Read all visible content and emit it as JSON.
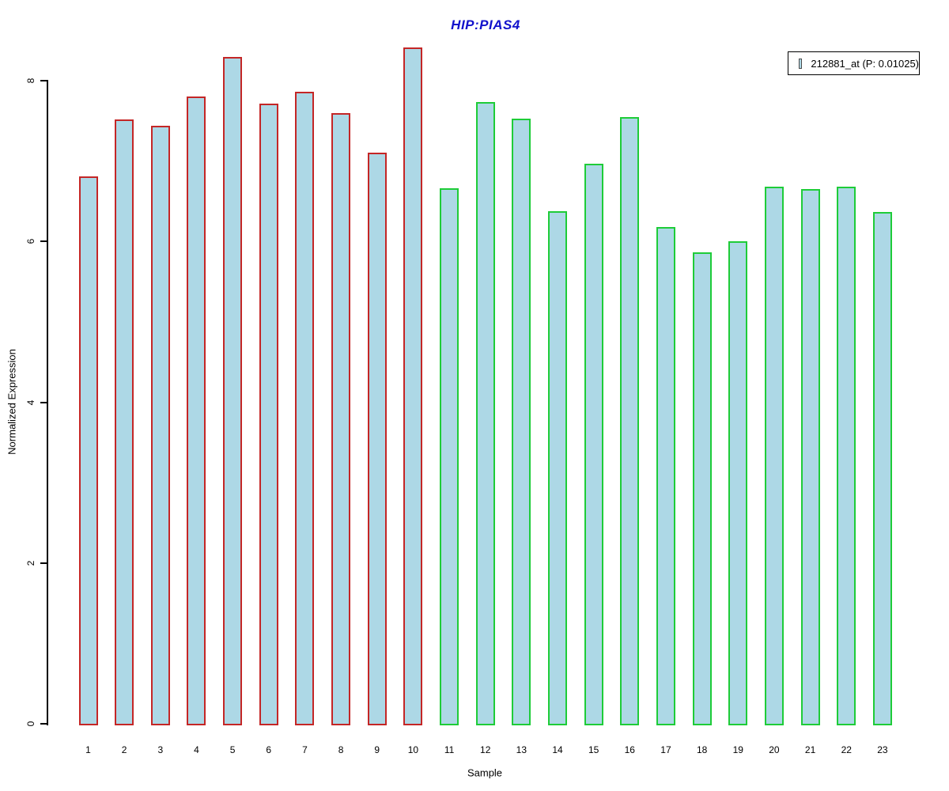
{
  "chart_data": {
    "type": "bar",
    "title": "HIP:PIAS4",
    "xlabel": "Sample",
    "ylabel": "Normalized Expression",
    "categories": [
      "1",
      "2",
      "3",
      "4",
      "5",
      "6",
      "7",
      "8",
      "9",
      "10",
      "11",
      "12",
      "13",
      "14",
      "15",
      "16",
      "17",
      "18",
      "19",
      "20",
      "21",
      "22",
      "23"
    ],
    "values": [
      6.81,
      7.52,
      7.44,
      7.8,
      8.3,
      7.71,
      7.86,
      7.6,
      7.1,
      8.41,
      6.66,
      7.73,
      7.53,
      6.38,
      6.97,
      7.55,
      6.18,
      5.86,
      6.0,
      6.68,
      6.65,
      6.68,
      6.37
    ],
    "yticks": [
      0,
      2,
      4,
      6,
      8
    ],
    "ylim": [
      0,
      8.45
    ],
    "grid": false,
    "legend": {
      "label": "212881_at (P: 0.01025)",
      "position": "top-right"
    },
    "colors": {
      "bar_fill": "#ADD8E6",
      "edge_group1": "#C42626",
      "edge_group2": "#1ECC38",
      "title": "#1212CC",
      "axis": "#000000"
    },
    "edge_groups": [
      {
        "samples": "1-10",
        "color_key": "edge_group1"
      },
      {
        "samples": "11-23",
        "color_key": "edge_group2"
      }
    ],
    "group_split_index": 10
  }
}
